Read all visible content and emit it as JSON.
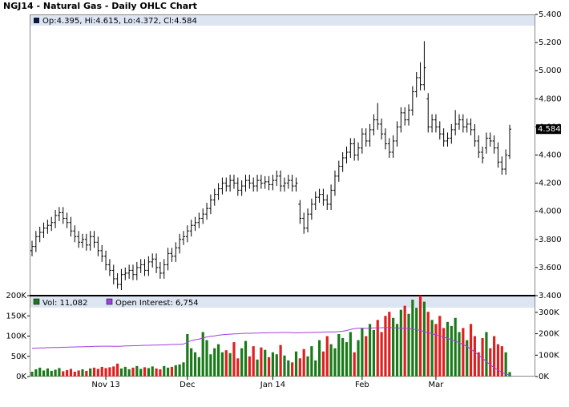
{
  "chart_data": {
    "type": "ohlc",
    "title": "NGJ14 - Natural Gas - Daily OHLC Chart",
    "info": "Op:4.395, Hi:4.615, Lo:4.372, Cl:4.584",
    "last_label": "4.584",
    "color": "#000000",
    "categories": [
      null,
      null,
      null,
      null,
      null,
      null,
      null,
      null,
      null,
      null,
      null,
      null,
      null,
      null,
      null,
      null,
      null,
      null,
      null,
      "Nov 13",
      null,
      null,
      null,
      null,
      null,
      null,
      null,
      null,
      null,
      null,
      null,
      null,
      null,
      null,
      null,
      null,
      null,
      null,
      null,
      null,
      "Dec",
      null,
      null,
      null,
      null,
      null,
      null,
      null,
      null,
      null,
      null,
      null,
      null,
      null,
      null,
      null,
      null,
      null,
      null,
      null,
      null,
      null,
      "Jan 14",
      null,
      null,
      null,
      null,
      null,
      null,
      null,
      null,
      null,
      null,
      null,
      null,
      null,
      null,
      null,
      null,
      null,
      null,
      null,
      null,
      null,
      null,
      "Feb",
      null,
      null,
      null,
      null,
      null,
      null,
      null,
      null,
      null,
      null,
      null,
      null,
      null,
      null,
      null,
      null,
      null,
      null,
      "Mar",
      null,
      null,
      null,
      null,
      null,
      null,
      null,
      null,
      null,
      null,
      null,
      null,
      null,
      null,
      null,
      null,
      null,
      null,
      null
    ],
    "ohlc": [
      [
        3.72,
        3.79,
        3.68,
        3.75
      ],
      [
        3.75,
        3.86,
        3.71,
        3.82
      ],
      [
        3.82,
        3.89,
        3.78,
        3.85
      ],
      [
        3.85,
        3.92,
        3.81,
        3.88
      ],
      [
        3.88,
        3.94,
        3.84,
        3.9
      ],
      [
        3.9,
        3.96,
        3.86,
        3.92
      ],
      [
        3.92,
        4.01,
        3.88,
        3.97
      ],
      [
        3.97,
        4.03,
        3.93,
        3.99
      ],
      [
        3.99,
        4.03,
        3.91,
        3.95
      ],
      [
        3.95,
        3.99,
        3.88,
        3.92
      ],
      [
        3.92,
        3.96,
        3.82,
        3.86
      ],
      [
        3.86,
        3.9,
        3.78,
        3.82
      ],
      [
        3.82,
        3.86,
        3.74,
        3.78
      ],
      [
        3.78,
        3.84,
        3.74,
        3.8
      ],
      [
        3.8,
        3.84,
        3.72,
        3.76
      ],
      [
        3.76,
        3.86,
        3.72,
        3.82
      ],
      [
        3.82,
        3.86,
        3.74,
        3.78
      ],
      [
        3.78,
        3.82,
        3.68,
        3.72
      ],
      [
        3.72,
        3.76,
        3.64,
        3.68
      ],
      [
        3.68,
        3.72,
        3.58,
        3.62
      ],
      [
        3.62,
        3.66,
        3.54,
        3.58
      ],
      [
        3.58,
        3.62,
        3.48,
        3.52
      ],
      [
        3.52,
        3.56,
        3.45,
        3.48
      ],
      [
        3.48,
        3.59,
        3.44,
        3.55
      ],
      [
        3.55,
        3.6,
        3.51,
        3.56
      ],
      [
        3.56,
        3.62,
        3.52,
        3.58
      ],
      [
        3.58,
        3.62,
        3.51,
        3.55
      ],
      [
        3.55,
        3.64,
        3.51,
        3.6
      ],
      [
        3.6,
        3.66,
        3.56,
        3.62
      ],
      [
        3.62,
        3.66,
        3.54,
        3.58
      ],
      [
        3.58,
        3.68,
        3.54,
        3.64
      ],
      [
        3.64,
        3.7,
        3.6,
        3.66
      ],
      [
        3.66,
        3.7,
        3.56,
        3.6
      ],
      [
        3.6,
        3.64,
        3.52,
        3.56
      ],
      [
        3.56,
        3.66,
        3.52,
        3.62
      ],
      [
        3.62,
        3.74,
        3.58,
        3.7
      ],
      [
        3.7,
        3.74,
        3.64,
        3.68
      ],
      [
        3.68,
        3.78,
        3.64,
        3.74
      ],
      [
        3.74,
        3.84,
        3.7,
        3.8
      ],
      [
        3.8,
        3.86,
        3.76,
        3.82
      ],
      [
        3.82,
        3.9,
        3.78,
        3.86
      ],
      [
        3.86,
        3.94,
        3.82,
        3.9
      ],
      [
        3.9,
        3.96,
        3.86,
        3.92
      ],
      [
        3.92,
        3.99,
        3.88,
        3.95
      ],
      [
        3.95,
        4.02,
        3.91,
        3.98
      ],
      [
        3.98,
        4.06,
        3.94,
        4.02
      ],
      [
        4.02,
        4.12,
        3.98,
        4.08
      ],
      [
        4.08,
        4.16,
        4.04,
        4.12
      ],
      [
        4.12,
        4.2,
        4.08,
        4.16
      ],
      [
        4.16,
        4.24,
        4.12,
        4.2
      ],
      [
        4.2,
        4.24,
        4.14,
        4.18
      ],
      [
        4.18,
        4.26,
        4.14,
        4.22
      ],
      [
        4.22,
        4.26,
        4.16,
        4.2
      ],
      [
        4.2,
        4.24,
        4.11,
        4.15
      ],
      [
        4.15,
        4.22,
        4.11,
        4.18
      ],
      [
        4.18,
        4.26,
        4.14,
        4.22
      ],
      [
        4.22,
        4.26,
        4.16,
        4.2
      ],
      [
        4.2,
        4.24,
        4.14,
        4.18
      ],
      [
        4.18,
        4.26,
        4.14,
        4.22
      ],
      [
        4.22,
        4.26,
        4.16,
        4.2
      ],
      [
        4.2,
        4.25,
        4.16,
        4.21
      ],
      [
        4.21,
        4.25,
        4.15,
        4.19
      ],
      [
        4.19,
        4.26,
        4.15,
        4.22
      ],
      [
        4.22,
        4.29,
        4.18,
        4.25
      ],
      [
        4.25,
        4.29,
        4.14,
        4.18
      ],
      [
        4.18,
        4.24,
        4.14,
        4.2
      ],
      [
        4.2,
        4.26,
        4.16,
        4.22
      ],
      [
        4.22,
        4.26,
        4.14,
        4.18
      ],
      [
        4.18,
        4.24,
        4.14,
        4.2
      ],
      [
        4.05,
        4.08,
        3.91,
        3.95
      ],
      [
        3.95,
        3.99,
        3.84,
        3.88
      ],
      [
        3.88,
        4.02,
        3.85,
        3.98
      ],
      [
        3.98,
        4.09,
        3.94,
        4.05
      ],
      [
        4.05,
        4.14,
        4.01,
        4.1
      ],
      [
        4.1,
        4.16,
        4.06,
        4.12
      ],
      [
        4.12,
        4.16,
        4.04,
        4.08
      ],
      [
        4.08,
        4.12,
        4.01,
        4.05
      ],
      [
        4.05,
        4.19,
        4.01,
        4.15
      ],
      [
        4.15,
        4.29,
        4.11,
        4.25
      ],
      [
        4.25,
        4.36,
        4.21,
        4.32
      ],
      [
        4.32,
        4.42,
        4.28,
        4.38
      ],
      [
        4.38,
        4.46,
        4.34,
        4.42
      ],
      [
        4.42,
        4.52,
        4.38,
        4.48
      ],
      [
        4.48,
        4.52,
        4.36,
        4.4
      ],
      [
        4.4,
        4.49,
        4.36,
        4.45
      ],
      [
        4.45,
        4.59,
        4.41,
        4.55
      ],
      [
        4.55,
        4.59,
        4.46,
        4.5
      ],
      [
        4.5,
        4.62,
        4.46,
        4.58
      ],
      [
        4.58,
        4.69,
        4.54,
        4.65
      ],
      [
        4.65,
        4.77,
        4.58,
        4.62
      ],
      [
        4.62,
        4.66,
        4.51,
        4.55
      ],
      [
        4.55,
        4.59,
        4.44,
        4.48
      ],
      [
        4.48,
        4.52,
        4.38,
        4.42
      ],
      [
        4.42,
        4.54,
        4.38,
        4.5
      ],
      [
        4.5,
        4.64,
        4.46,
        4.6
      ],
      [
        4.6,
        4.74,
        4.56,
        4.7
      ],
      [
        4.7,
        4.74,
        4.61,
        4.65
      ],
      [
        4.65,
        4.76,
        4.61,
        4.72
      ],
      [
        4.72,
        4.89,
        4.68,
        4.85
      ],
      [
        4.85,
        4.99,
        4.81,
        4.95
      ],
      [
        4.95,
        5.06,
        4.86,
        4.9
      ],
      [
        4.9,
        5.21,
        4.86,
        5.02
      ],
      [
        4.8,
        4.84,
        4.56,
        4.6
      ],
      [
        4.6,
        4.69,
        4.56,
        4.65
      ],
      [
        4.65,
        4.69,
        4.56,
        4.6
      ],
      [
        4.6,
        4.64,
        4.51,
        4.55
      ],
      [
        4.55,
        4.59,
        4.46,
        4.5
      ],
      [
        4.5,
        4.56,
        4.46,
        4.52
      ],
      [
        4.52,
        4.62,
        4.48,
        4.58
      ],
      [
        4.58,
        4.72,
        4.54,
        4.62
      ],
      [
        4.62,
        4.69,
        4.58,
        4.65
      ],
      [
        4.65,
        4.69,
        4.56,
        4.6
      ],
      [
        4.6,
        4.66,
        4.56,
        4.62
      ],
      [
        4.62,
        4.66,
        4.54,
        4.58
      ],
      [
        4.58,
        4.62,
        4.46,
        4.5
      ],
      [
        4.5,
        4.54,
        4.38,
        4.42
      ],
      [
        4.42,
        4.46,
        4.34,
        4.38
      ],
      [
        4.45,
        4.56,
        4.41,
        4.52
      ],
      [
        4.52,
        4.56,
        4.46,
        4.5
      ],
      [
        4.5,
        4.54,
        4.41,
        4.45
      ],
      [
        4.45,
        4.49,
        4.31,
        4.35
      ],
      [
        4.35,
        4.39,
        4.26,
        4.3
      ],
      [
        4.3,
        4.44,
        4.26,
        4.4
      ],
      [
        4.395,
        4.615,
        4.372,
        4.584
      ]
    ],
    "ylim": [
      3.4,
      5.4
    ],
    "yticks": [
      {
        "value": 3.4,
        "label": "3.400"
      },
      {
        "value": 3.6,
        "label": "3.600"
      },
      {
        "value": 3.8,
        "label": "3.800"
      },
      {
        "value": 4.0,
        "label": "4.000"
      },
      {
        "value": 4.2,
        "label": "4.200"
      },
      {
        "value": 4.4,
        "label": "4.400"
      },
      {
        "value": 4.6,
        "label": "4.600"
      },
      {
        "value": 4.8,
        "label": "4.800"
      },
      {
        "value": 5.0,
        "label": "5.000"
      },
      {
        "value": 5.2,
        "label": "5.200"
      },
      {
        "value": 5.4,
        "label": "5.400"
      }
    ],
    "volume": {
      "name": "Vol: 11,082",
      "up_color": "#1a7a1a",
      "down_color": "#e02020",
      "values": [
        12000,
        18000,
        22000,
        15000,
        20000,
        14000,
        17000,
        21000,
        13000,
        16000,
        19000,
        12000,
        15000,
        18000,
        14000,
        20000,
        22000,
        19000,
        24000,
        21000,
        23000,
        25000,
        32000,
        20000,
        24000,
        18000,
        22000,
        26000,
        19000,
        23000,
        21000,
        25000,
        20000,
        18000,
        26000,
        22000,
        24000,
        28000,
        30000,
        35000,
        105000,
        70000,
        60000,
        48000,
        110000,
        90000,
        55000,
        70000,
        80000,
        60000,
        65000,
        58000,
        85000,
        45000,
        70000,
        88000,
        50000,
        75000,
        42000,
        72000,
        66000,
        48000,
        60000,
        55000,
        78000,
        52000,
        40000,
        35000,
        62000,
        45000,
        68000,
        50000,
        75000,
        40000,
        90000,
        62000,
        100000,
        80000,
        70000,
        105000,
        95000,
        85000,
        110000,
        60000,
        90000,
        120000,
        100000,
        130000,
        115000,
        140000,
        110000,
        150000,
        160000,
        145000,
        130000,
        165000,
        175000,
        155000,
        190000,
        170000,
        200000,
        185000,
        160000,
        140000,
        130000,
        150000,
        120000,
        135000,
        125000,
        145000,
        110000,
        120000,
        90000,
        130000,
        100000,
        60000,
        95000,
        110000,
        70000,
        100000,
        80000,
        75000,
        60000,
        11082
      ],
      "ylim": [
        0,
        200000
      ],
      "yticks": [
        {
          "value": 0,
          "label": "0K"
        },
        {
          "value": 50000,
          "label": "50K"
        },
        {
          "value": 100000,
          "label": "100K"
        },
        {
          "value": 150000,
          "label": "150K"
        },
        {
          "value": 200000,
          "label": "200K"
        }
      ]
    },
    "open_interest": {
      "name": "Open Interest: 6,754",
      "color": "#a040e0",
      "axis": "y2",
      "values": [
        132000,
        133000,
        134000,
        134000,
        135000,
        135000,
        136000,
        136000,
        137000,
        137000,
        138000,
        138000,
        139000,
        139000,
        140000,
        140000,
        141000,
        141000,
        142000,
        142000,
        142000,
        141000,
        141000,
        142000,
        143000,
        143000,
        144000,
        144000,
        145000,
        146000,
        146000,
        147000,
        147000,
        148000,
        148000,
        149000,
        150000,
        150000,
        151000,
        152000,
        160000,
        168000,
        172000,
        175000,
        180000,
        185000,
        188000,
        190000,
        193000,
        195000,
        197000,
        198000,
        199000,
        200000,
        201000,
        202000,
        202000,
        203000,
        203000,
        204000,
        204000,
        205000,
        205000,
        205000,
        206000,
        206000,
        206000,
        205000,
        204000,
        205000,
        205000,
        206000,
        206000,
        207000,
        207000,
        208000,
        208000,
        209000,
        209000,
        210000,
        212000,
        215000,
        220000,
        224000,
        226000,
        226000,
        225000,
        226000,
        227000,
        228000,
        228000,
        229000,
        229000,
        228000,
        227000,
        226000,
        225000,
        224000,
        222000,
        220000,
        215000,
        210000,
        205000,
        200000,
        195000,
        190000,
        185000,
        178000,
        172000,
        165000,
        158000,
        150000,
        140000,
        128000,
        115000,
        100000,
        85000,
        70000,
        55000,
        42000,
        30000,
        20000,
        12000,
        6754
      ],
      "y2lim": [
        0,
        378000
      ],
      "y2ticks": [
        {
          "value": 0,
          "label": "0K"
        },
        {
          "value": 100000,
          "label": "100K"
        },
        {
          "value": 200000,
          "label": "200K"
        },
        {
          "value": 300000,
          "label": "300K"
        }
      ]
    }
  }
}
